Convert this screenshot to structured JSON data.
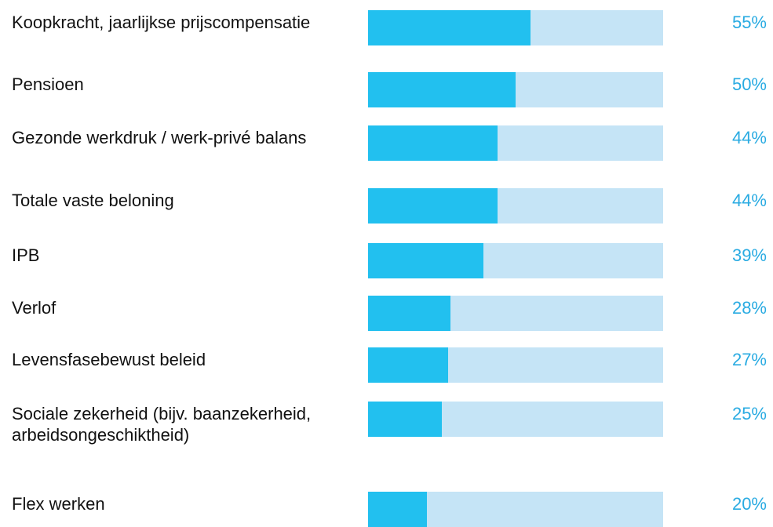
{
  "chart_data": {
    "type": "bar",
    "orientation": "horizontal",
    "categories": [
      "Koopkracht, jaarlijkse prijscompensatie",
      "Pensioen",
      "Gezonde werkdruk / werk-privé balans",
      "Totale vaste beloning",
      "IPB",
      "Verlof",
      "Levensfasebewust beleid",
      "Sociale zekerheid (bijv. baanzekerheid, arbeidsongeschiktheid)",
      "Flex werken"
    ],
    "values": [
      55,
      50,
      44,
      44,
      39,
      28,
      27,
      25,
      20
    ],
    "value_labels": [
      "55%",
      "50%",
      "44%",
      "44%",
      "39%",
      "28%",
      "27%",
      "25%",
      "20%"
    ],
    "color": "#22c0ef",
    "track_color": "#c5e4f6",
    "label_color": "#29abe2",
    "xlim": [
      0,
      100
    ]
  }
}
